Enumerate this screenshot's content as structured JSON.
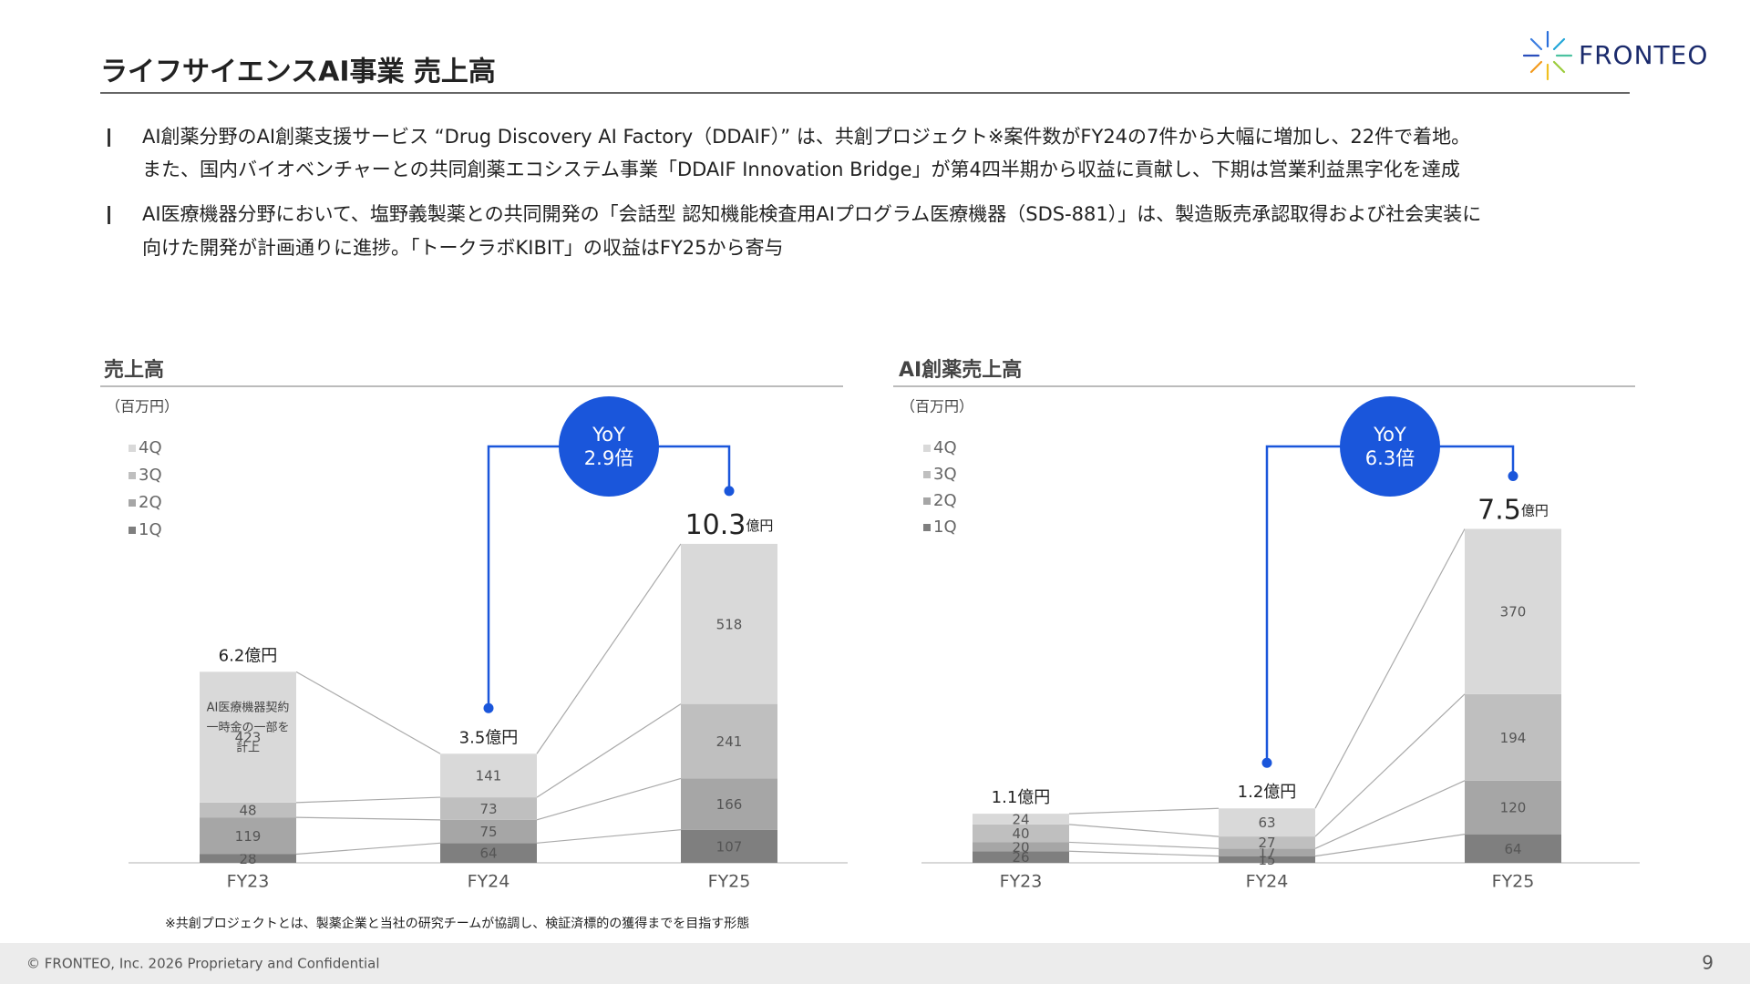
{
  "header": {
    "title": "ライフサイエンスAI事業 売上高",
    "logo": "FRONTEO"
  },
  "bullets": [
    [
      "AI創薬分野のAI創薬支援サービス “Drug Discovery AI Factory（DDAIF）” は、共創プロジェクト※案件数がFY24の7件から大幅に増加し、22件で着地。",
      "また、国内バイオベンチャーとの共同創薬エコシステム事業「DDAIF Innovation Bridge」が第4四半期から収益に貢献し、下期は営業利益黒字化を達成"
    ],
    [
      "AI医療機器分野において、塩野義製薬との共同開発の「会話型 認知機能検査用AIプログラム医療機器（SDS-881）」は、製造販売承認取得および社会実装に",
      "向けた開発が計画通りに進捗。「トークラボKIBIT」の収益はFY25から寄与"
    ]
  ],
  "chart_data": [
    {
      "type": "stacked_bar",
      "title": "売上高",
      "unit": "（百万円）",
      "categories": [
        "FY23",
        "FY24",
        "FY25"
      ],
      "series": [
        {
          "name": "1Q",
          "color": "#7f7f7f",
          "values": [
            28,
            64,
            107
          ]
        },
        {
          "name": "2Q",
          "color": "#a6a6a6",
          "values": [
            119,
            75,
            166
          ]
        },
        {
          "name": "3Q",
          "color": "#bfbfbf",
          "values": [
            48,
            73,
            241
          ]
        },
        {
          "name": "4Q",
          "color": "#d9d9d9",
          "values": [
            423,
            141,
            518
          ]
        }
      ],
      "total_labels": [
        "6.2億円",
        "3.5億円",
        "10.3億円"
      ],
      "annotation": [
        "AI医療機器契約",
        "一時金の一部を",
        "計上"
      ],
      "yoy": [
        "YoY",
        "2.9倍"
      ],
      "ylim": [
        0,
        1300
      ]
    },
    {
      "type": "stacked_bar",
      "title": "AI創薬売上高",
      "unit": "（百万円）",
      "categories": [
        "FY23",
        "FY24",
        "FY25"
      ],
      "series": [
        {
          "name": "1Q",
          "color": "#7f7f7f",
          "values": [
            26,
            15,
            64
          ]
        },
        {
          "name": "2Q",
          "color": "#a6a6a6",
          "values": [
            20,
            17,
            120
          ]
        },
        {
          "name": "3Q",
          "color": "#bfbfbf",
          "values": [
            40,
            27,
            194
          ]
        },
        {
          "name": "4Q",
          "color": "#d9d9d9",
          "values": [
            24,
            63,
            370
          ]
        }
      ],
      "total_labels": [
        "1.1億円",
        "1.2億円",
        "7.5億円"
      ],
      "yoy": [
        "YoY",
        "6.3倍"
      ],
      "ylim": [
        0,
        900
      ]
    }
  ],
  "footnote": "※共創プロジェクトとは、製薬企業と当社の研究チームが協調し、検証済標的の獲得までを目指す形態",
  "footer": {
    "copyright": "© FRONTEO, Inc. 2026  Proprietary and Confidential",
    "page": "9"
  }
}
